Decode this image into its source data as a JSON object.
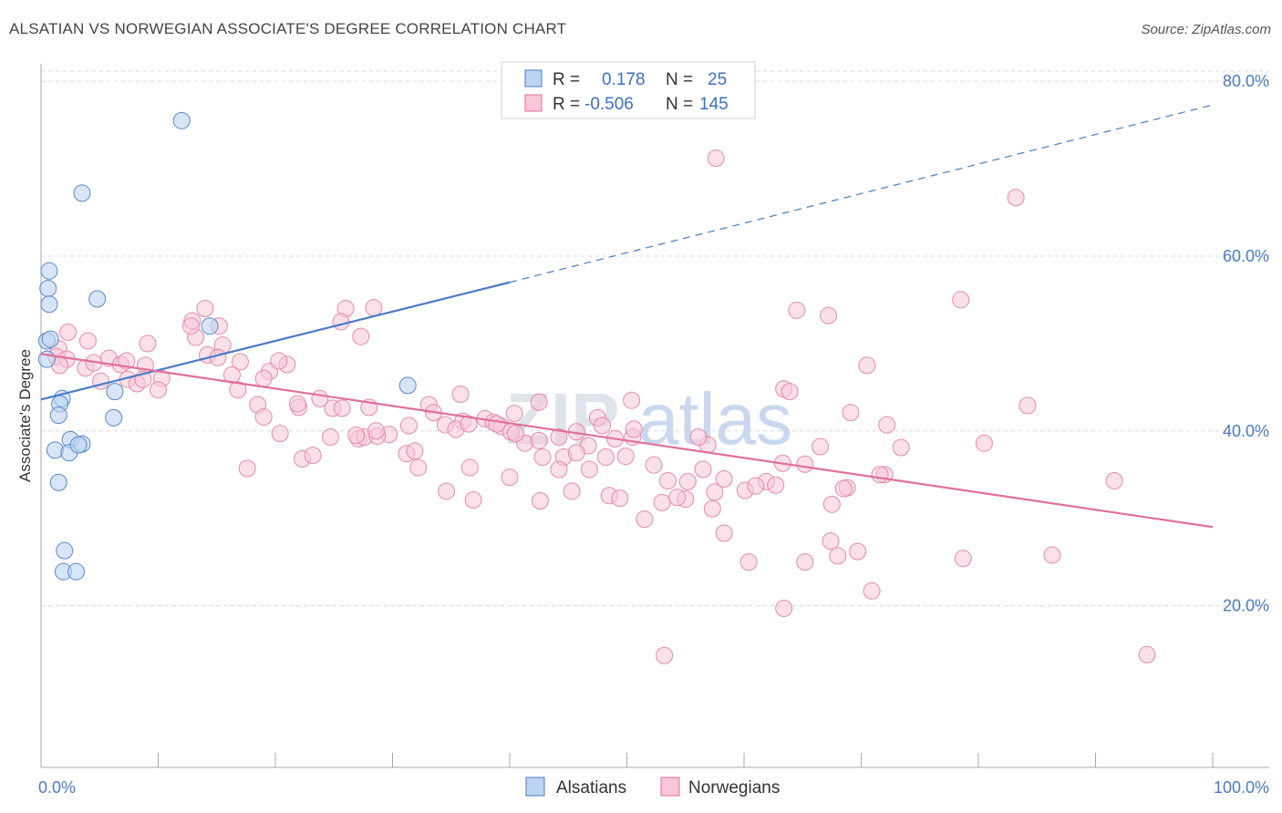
{
  "title": "ALSATIAN VS NORWEGIAN ASSOCIATE'S DEGREE CORRELATION CHART",
  "source": "Source: ZipAtlas.com",
  "watermark": {
    "zip": "ZIP",
    "atlas": "atlas"
  },
  "colors": {
    "alsatians": "#4a7bc6",
    "norwegians": "#e0709a"
  },
  "legend_top": [
    {
      "series": "Alsatians",
      "r_label": "R =",
      "r_value": "0.178",
      "n_label": "N =",
      "n_value": "25"
    },
    {
      "series": "Norwegians",
      "r_label": "R =",
      "r_value": "-0.506",
      "n_label": "N =",
      "n_value": "145"
    }
  ],
  "chart_data": {
    "type": "scatter",
    "title": "ALSATIAN VS NORWEGIAN ASSOCIATE'S DEGREE CORRELATION CHART",
    "xlabel": "",
    "ylabel": "Associate's Degree",
    "xlim": [
      0,
      100
    ],
    "ylim": [
      1.5,
      82
    ],
    "x_tick_labels": [
      "0.0%",
      "100.0%"
    ],
    "y_ticks": [
      20,
      40,
      60,
      80
    ],
    "y_tick_labels": [
      "20.0%",
      "40.0%",
      "60.0%",
      "80.0%"
    ],
    "grid": true,
    "legend_placement": "bottom-center",
    "series": [
      {
        "name": "Alsatians",
        "color": "#4a7bc6",
        "trend": {
          "x0": 0,
          "y0": 43.6,
          "x1": 40,
          "y1": 57,
          "dashed_to_x": 100,
          "dashed_to_y": 77.3
        },
        "points": [
          [
            12,
            75.5
          ],
          [
            3.5,
            67.2
          ],
          [
            0.7,
            58.3
          ],
          [
            0.6,
            56.3
          ],
          [
            0.7,
            54.5
          ],
          [
            4.8,
            55.1
          ],
          [
            14.4,
            52
          ],
          [
            0.5,
            50.3
          ],
          [
            0.8,
            50.5
          ],
          [
            0.5,
            48.2
          ],
          [
            1.8,
            43.7
          ],
          [
            1.6,
            43.1
          ],
          [
            1.5,
            41.8
          ],
          [
            6.3,
            44.5
          ],
          [
            6.2,
            41.5
          ],
          [
            31.3,
            45.2
          ],
          [
            1.2,
            37.8
          ],
          [
            2.5,
            39
          ],
          [
            2.4,
            37.5
          ],
          [
            3.5,
            38.5
          ],
          [
            3.2,
            38.4
          ],
          [
            1.5,
            34.1
          ],
          [
            2,
            26.3
          ],
          [
            1.9,
            23.9
          ],
          [
            3,
            23.9
          ]
        ]
      },
      {
        "name": "Norwegians",
        "color": "#e0709a",
        "trend": {
          "x0": 0,
          "y0": 48.8,
          "x1": 100,
          "y1": 29
        },
        "points": [
          [
            57.6,
            71.2
          ],
          [
            83.2,
            66.7
          ],
          [
            78.5,
            55
          ],
          [
            64.5,
            53.8
          ],
          [
            67.2,
            53.2
          ],
          [
            12.9,
            52.6
          ],
          [
            13.2,
            50.7
          ],
          [
            12.8,
            52
          ],
          [
            15.2,
            52
          ],
          [
            14,
            54
          ],
          [
            26,
            54
          ],
          [
            28.4,
            54.1
          ],
          [
            25.6,
            52.5
          ],
          [
            27.3,
            50.8
          ],
          [
            2.3,
            51.3
          ],
          [
            4,
            50.3
          ],
          [
            9.1,
            50
          ],
          [
            15.5,
            49.8
          ],
          [
            1.5,
            49.4
          ],
          [
            1.3,
            48.5
          ],
          [
            2.2,
            48.2
          ],
          [
            1.6,
            47.5
          ],
          [
            3.8,
            47.2
          ],
          [
            4.5,
            47.8
          ],
          [
            5.8,
            48.3
          ],
          [
            6.8,
            47.6
          ],
          [
            8.9,
            47.5
          ],
          [
            7.3,
            48
          ],
          [
            14.2,
            48.7
          ],
          [
            17,
            47.9
          ],
          [
            21,
            47.6
          ],
          [
            15.1,
            48.4
          ],
          [
            16.3,
            46.4
          ],
          [
            19.5,
            46.8
          ],
          [
            20.3,
            48
          ],
          [
            5.1,
            45.7
          ],
          [
            7.4,
            45.9
          ],
          [
            8.2,
            45.4
          ],
          [
            8.7,
            45.9
          ],
          [
            10.3,
            46
          ],
          [
            16.8,
            44.7
          ],
          [
            10,
            44.7
          ],
          [
            19,
            46
          ],
          [
            23.8,
            43.7
          ],
          [
            18.5,
            43
          ],
          [
            22,
            42.7
          ],
          [
            24.9,
            42.6
          ],
          [
            25.7,
            42.6
          ],
          [
            28,
            42.7
          ],
          [
            33.1,
            43
          ],
          [
            35.8,
            44.2
          ],
          [
            40.4,
            42
          ],
          [
            42.5,
            43.3
          ],
          [
            50.4,
            43.5
          ],
          [
            56.9,
            38.4
          ],
          [
            57.5,
            33
          ],
          [
            63.4,
            44.8
          ],
          [
            63.9,
            44.5
          ],
          [
            70.5,
            47.5
          ],
          [
            69.1,
            42.1
          ],
          [
            72.2,
            40.7
          ],
          [
            68.8,
            33.5
          ],
          [
            66.5,
            38.2
          ],
          [
            72,
            35
          ],
          [
            65.2,
            36.2
          ],
          [
            61.9,
            34.2
          ],
          [
            62.7,
            33.8
          ],
          [
            47.5,
            41.5
          ],
          [
            45.7,
            39.9
          ],
          [
            50.5,
            39.3
          ],
          [
            56.1,
            39.3
          ],
          [
            19,
            41.6
          ],
          [
            20.4,
            39.7
          ],
          [
            21.9,
            43.1
          ],
          [
            24.7,
            39.3
          ],
          [
            27.1,
            39.1
          ],
          [
            29.7,
            39.6
          ],
          [
            31.4,
            40.6
          ],
          [
            33.5,
            42.1
          ],
          [
            34.5,
            40.7
          ],
          [
            36,
            41.1
          ],
          [
            37.9,
            41.4
          ],
          [
            38.6,
            41
          ],
          [
            39.3,
            40.5
          ],
          [
            40.1,
            39.9
          ],
          [
            41.3,
            38.6
          ],
          [
            42.5,
            38.9
          ],
          [
            44.2,
            39.3
          ],
          [
            46.7,
            38.3
          ],
          [
            47.9,
            40.6
          ],
          [
            49,
            39.1
          ],
          [
            50.6,
            40.2
          ],
          [
            27.6,
            39.3
          ],
          [
            28.7,
            39.4
          ],
          [
            22.3,
            36.8
          ],
          [
            23.2,
            37.2
          ],
          [
            26.9,
            39.5
          ],
          [
            31.2,
            37.4
          ],
          [
            31.9,
            37.7
          ],
          [
            28.6,
            40
          ],
          [
            35.4,
            40.2
          ],
          [
            36.5,
            40.8
          ],
          [
            38.9,
            40.8
          ],
          [
            40.5,
            39.7
          ],
          [
            42.8,
            37
          ],
          [
            44.6,
            37
          ],
          [
            45.7,
            37.5
          ],
          [
            48.2,
            37
          ],
          [
            49.9,
            37.1
          ],
          [
            52.3,
            36.1
          ],
          [
            46.8,
            35.6
          ],
          [
            32.2,
            35.8
          ],
          [
            36.6,
            35.8
          ],
          [
            40,
            34.7
          ],
          [
            44.2,
            35.6
          ],
          [
            45.3,
            33.1
          ],
          [
            53.5,
            34.3
          ],
          [
            55.2,
            34.2
          ],
          [
            56.5,
            35.6
          ],
          [
            58.3,
            34.5
          ],
          [
            60.1,
            33.2
          ],
          [
            61,
            33.7
          ],
          [
            63.3,
            36.3
          ],
          [
            67.5,
            31.6
          ],
          [
            68.5,
            33.4
          ],
          [
            73.4,
            38.1
          ],
          [
            71.6,
            35
          ],
          [
            69.7,
            26.2
          ],
          [
            68,
            25.7
          ],
          [
            70.9,
            21.7
          ],
          [
            65.2,
            25
          ],
          [
            67.4,
            27.4
          ],
          [
            63.4,
            19.7
          ],
          [
            60.4,
            25
          ],
          [
            58.3,
            28.3
          ],
          [
            57.3,
            31.1
          ],
          [
            55,
            32.2
          ],
          [
            54.3,
            32.4
          ],
          [
            48.5,
            32.6
          ],
          [
            49.4,
            32.3
          ],
          [
            53,
            31.8
          ],
          [
            51.5,
            29.9
          ],
          [
            42.6,
            32
          ],
          [
            34.6,
            33.1
          ],
          [
            36.9,
            32.1
          ],
          [
            53.2,
            14.3
          ],
          [
            78.7,
            25.4
          ],
          [
            86.3,
            25.8
          ],
          [
            91.6,
            34.3
          ],
          [
            94.4,
            14.4
          ],
          [
            17.6,
            35.7
          ],
          [
            80.5,
            38.6
          ],
          [
            84.2,
            42.9
          ]
        ]
      }
    ]
  },
  "legend_bottom": [
    {
      "label": "Alsatians"
    },
    {
      "label": "Norwegians"
    }
  ]
}
